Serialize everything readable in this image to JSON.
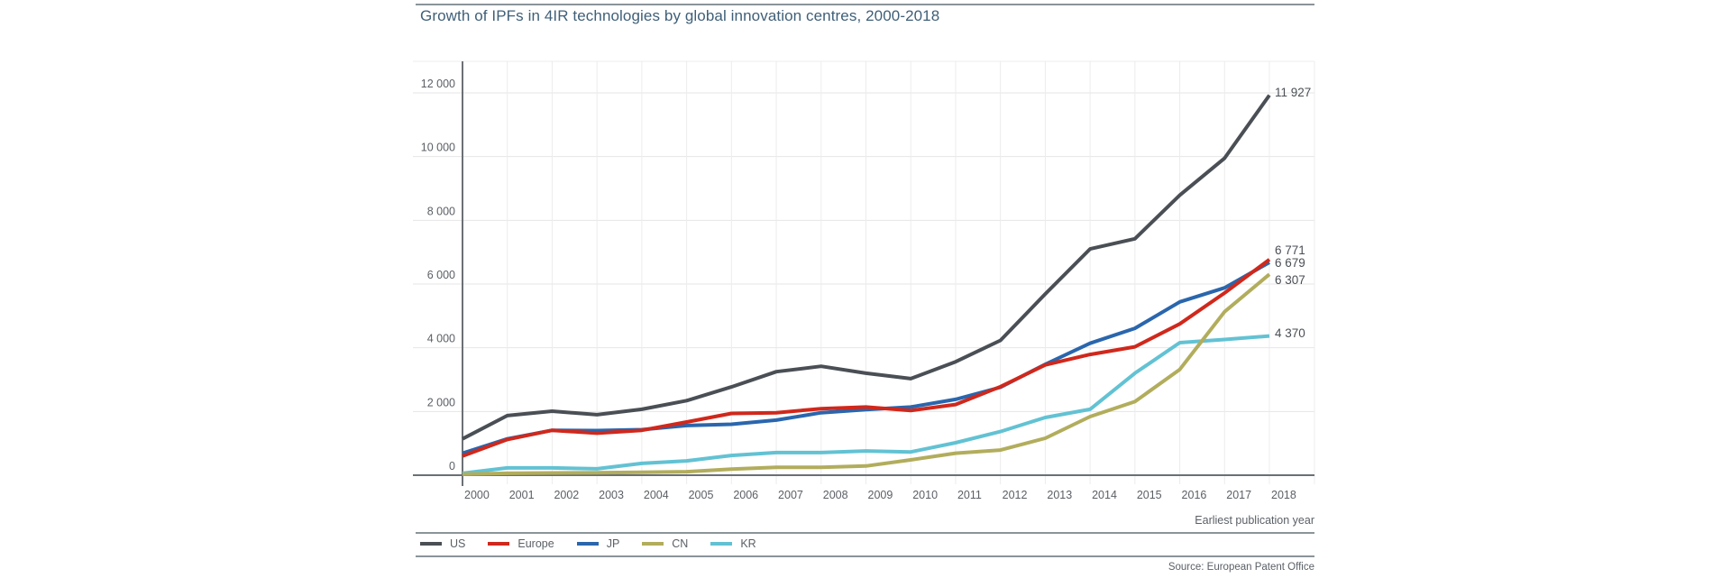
{
  "chart_data": {
    "type": "line",
    "title": "Growth of IPFs in 4IR technologies by global innovation centres, 2000-2018",
    "xlabel": "Earliest publication year",
    "ylabel": "",
    "x": [
      2000,
      2001,
      2002,
      2003,
      2004,
      2005,
      2006,
      2007,
      2008,
      2009,
      2010,
      2011,
      2012,
      2013,
      2014,
      2015,
      2016,
      2017,
      2018
    ],
    "ylim": [
      0,
      12000
    ],
    "yticks": [
      0,
      2000,
      4000,
      6000,
      8000,
      10000,
      12000
    ],
    "ytick_labels": [
      "0",
      "2 000",
      "4 000",
      "6 000",
      "8 000",
      "10 000",
      "12 000"
    ],
    "xtick_labels": [
      "2000",
      "2001",
      "2002",
      "2003",
      "2004",
      "2005",
      "2006",
      "2007",
      "2008",
      "2009",
      "2010",
      "2011",
      "2012",
      "2013",
      "2014",
      "2015",
      "2016",
      "2017",
      "2018"
    ],
    "grid": true,
    "legend_position": "bottom",
    "series": [
      {
        "name": "US",
        "color": "#4a4f55",
        "end_label": "11 927",
        "values": [
          1140,
          1870,
          2010,
          1900,
          2070,
          2340,
          2770,
          3250,
          3420,
          3200,
          3030,
          3560,
          4230,
          5690,
          7100,
          7420,
          8790,
          9950,
          11927
        ]
      },
      {
        "name": "Europe",
        "color": "#d0281c",
        "end_label": "6 771",
        "values": [
          600,
          1120,
          1410,
          1320,
          1410,
          1670,
          1940,
          1960,
          2090,
          2140,
          2030,
          2220,
          2780,
          3460,
          3790,
          4030,
          4750,
          5720,
          6771
        ]
      },
      {
        "name": "JP",
        "color": "#2a66ad",
        "end_label": "6 679",
        "values": [
          690,
          1140,
          1410,
          1400,
          1430,
          1560,
          1600,
          1730,
          1960,
          2060,
          2140,
          2380,
          2760,
          3480,
          4140,
          4610,
          5440,
          5880,
          6679
        ]
      },
      {
        "name": "CN",
        "color": "#b2ad5c",
        "end_label": "6 307",
        "values": [
          30,
          60,
          70,
          80,
          90,
          110,
          190,
          250,
          250,
          290,
          480,
          690,
          790,
          1160,
          1840,
          2310,
          3320,
          5130,
          6307
        ]
      },
      {
        "name": "KR",
        "color": "#62c2d3",
        "end_label": "4 370",
        "values": [
          60,
          230,
          230,
          200,
          370,
          450,
          620,
          710,
          710,
          760,
          730,
          1020,
          1370,
          1810,
          2070,
          3200,
          4160,
          4260,
          4370
        ]
      }
    ]
  },
  "source": "Source: European Patent Office"
}
